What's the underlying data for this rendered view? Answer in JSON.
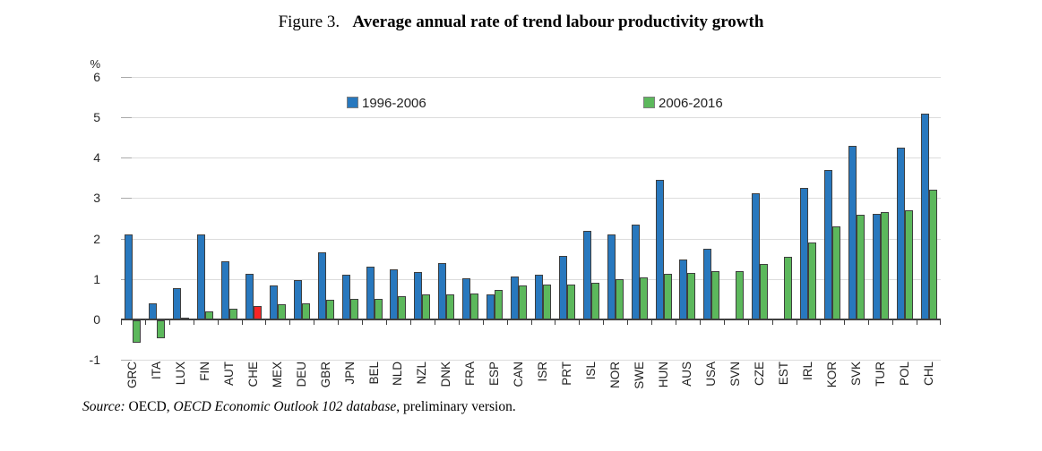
{
  "title": {
    "figure_label": "Figure 3.",
    "text": "Average annual rate of trend labour productivity growth"
  },
  "source": {
    "label": "Source:",
    "part_plain_1": "  OECD, ",
    "part_italic": "OECD Economic Outlook 102 database",
    "part_plain_2": ", preliminary version."
  },
  "chart_data": {
    "type": "bar",
    "title": "Average annual rate of trend labour productivity growth",
    "unit_label": "%",
    "ylim": [
      -1,
      6
    ],
    "yticks": [
      6,
      5,
      4,
      3,
      2,
      1,
      0,
      -1
    ],
    "grid": "horizontal",
    "legend_position": "inside-top",
    "categories": [
      "GRC",
      "ITA",
      "LUX",
      "FIN",
      "AUT",
      "CHE",
      "MEX",
      "DEU",
      "GBR",
      "JPN",
      "BEL",
      "NLD",
      "NZL",
      "DNK",
      "FRA",
      "ESP",
      "CAN",
      "ISR",
      "PRT",
      "ISL",
      "NOR",
      "SWE",
      "HUN",
      "AUS",
      "USA",
      "SVN",
      "CZE",
      "EST",
      "IRL",
      "KOR",
      "SVK",
      "TUR",
      "POL",
      "CHL"
    ],
    "series": [
      {
        "name": "1996-2006",
        "color": "#2878be",
        "values": [
          2.1,
          0.4,
          0.78,
          2.1,
          1.45,
          1.14,
          0.85,
          0.98,
          1.67,
          1.11,
          1.3,
          1.25,
          1.17,
          1.39,
          1.02,
          0.61,
          1.07,
          1.1,
          1.58,
          2.2,
          2.1,
          2.35,
          3.45,
          1.48,
          1.74,
          null,
          3.13,
          null,
          3.25,
          3.7,
          4.3,
          2.62,
          4.25,
          5.1
        ]
      },
      {
        "name": "2006-2016",
        "color": "#5cb85c",
        "values": [
          -0.55,
          -0.45,
          0.05,
          0.2,
          0.27,
          0.34,
          0.37,
          0.39,
          0.48,
          0.5,
          0.51,
          0.57,
          0.61,
          0.63,
          0.65,
          0.72,
          0.85,
          0.87,
          0.87,
          0.91,
          1.0,
          1.03,
          1.13,
          1.15,
          1.19,
          1.19,
          1.37,
          1.54,
          1.9,
          2.3,
          2.6,
          2.66,
          2.7,
          3.22
        ]
      }
    ],
    "highlight": {
      "category": "CHE",
      "series": "2006-2016",
      "color": "#f82525"
    }
  }
}
